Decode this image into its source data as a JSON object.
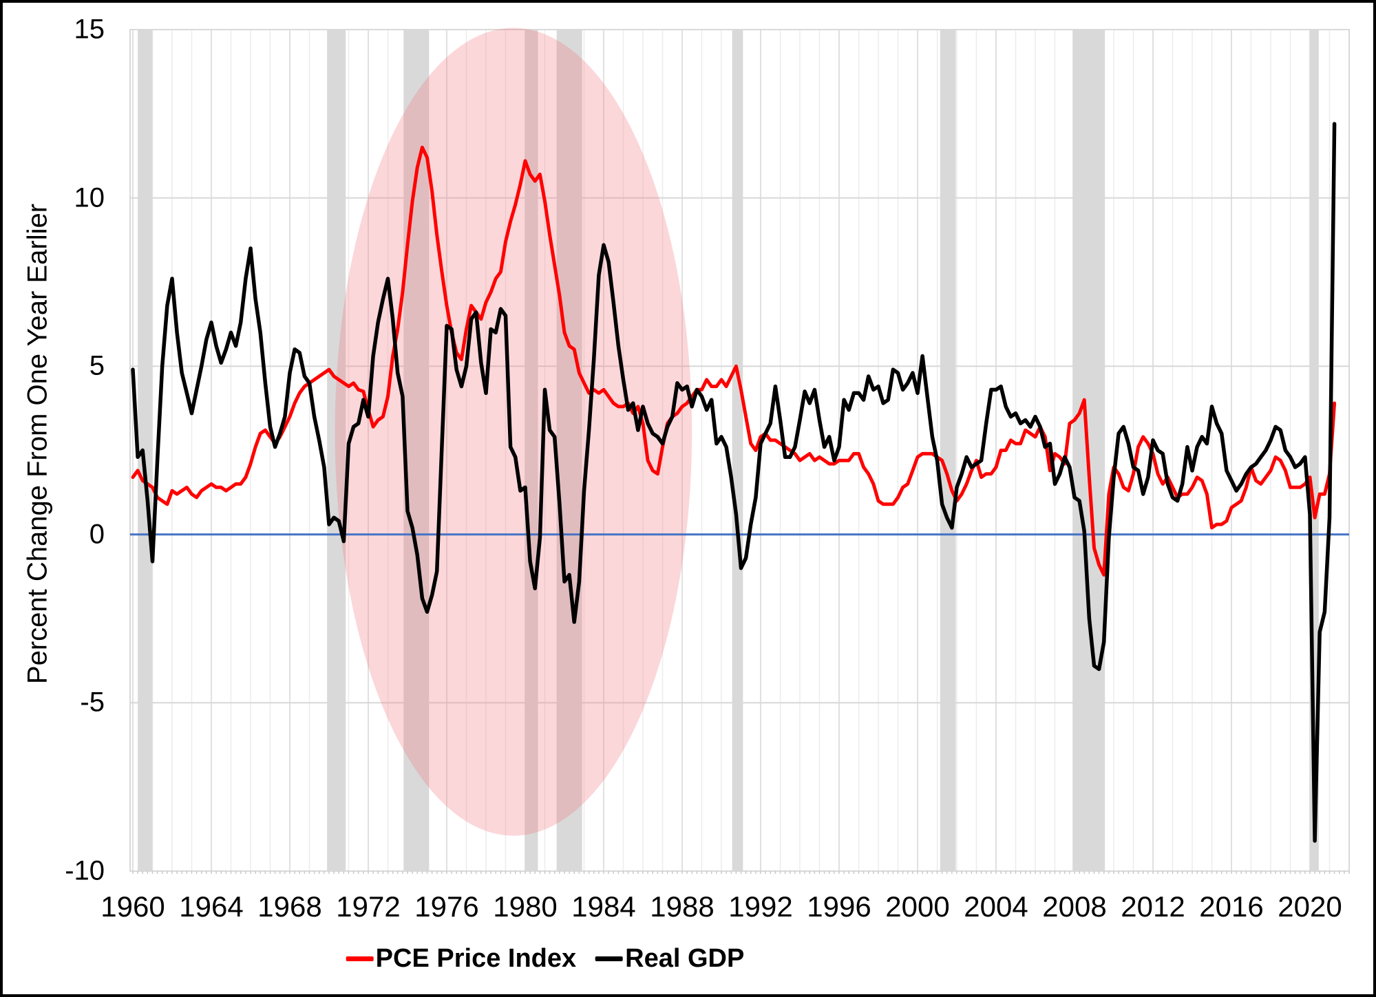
{
  "figure": {
    "y_axis_title": "Percent Change From One Year Earlier"
  },
  "chart_data": {
    "type": "line",
    "title": "",
    "xlabel": "",
    "ylabel": "Percent Change From One Year Earlier",
    "xlim": [
      1959.86,
      2022.0
    ],
    "ylim": [
      -10,
      15
    ],
    "x_ticks": [
      1960,
      1964,
      1968,
      1972,
      1976,
      1980,
      1984,
      1988,
      1992,
      1996,
      2000,
      2004,
      2008,
      2012,
      2016,
      2020
    ],
    "y_ticks": [
      15,
      10,
      5,
      0,
      -5,
      -10
    ],
    "grid": "on",
    "legend_position": "bottom-center",
    "x_start": 1960.0,
    "x_step": 0.25,
    "frequency": "quarterly",
    "series": [
      {
        "name": "PCE Price Index",
        "color": "#FF0000",
        "width": 5,
        "values": [
          1.7,
          1.9,
          1.6,
          1.5,
          1.4,
          1.1,
          1.0,
          0.9,
          1.3,
          1.2,
          1.3,
          1.4,
          1.2,
          1.1,
          1.3,
          1.4,
          1.5,
          1.4,
          1.4,
          1.3,
          1.4,
          1.5,
          1.5,
          1.7,
          2.1,
          2.6,
          3.0,
          3.1,
          2.9,
          2.7,
          2.9,
          3.2,
          3.5,
          3.9,
          4.2,
          4.4,
          4.5,
          4.6,
          4.7,
          4.8,
          4.9,
          4.7,
          4.6,
          4.5,
          4.4,
          4.5,
          4.3,
          4.25,
          3.7,
          3.2,
          3.4,
          3.5,
          4.1,
          5.3,
          6.1,
          7.2,
          8.6,
          9.9,
          10.9,
          11.5,
          11.2,
          10.2,
          8.9,
          7.8,
          6.8,
          6.0,
          5.4,
          5.2,
          6.1,
          6.8,
          6.6,
          6.4,
          6.9,
          7.2,
          7.6,
          7.8,
          8.7,
          9.3,
          9.8,
          10.4,
          11.1,
          10.7,
          10.5,
          10.7,
          9.9,
          8.9,
          8.0,
          7.1,
          6.0,
          5.6,
          5.5,
          4.8,
          4.5,
          4.2,
          4.3,
          4.2,
          4.3,
          4.1,
          3.9,
          3.8,
          3.8,
          3.9,
          3.6,
          3.8,
          3.3,
          2.2,
          1.9,
          1.8,
          2.6,
          3.3,
          3.5,
          3.6,
          3.8,
          3.9,
          4.1,
          4.3,
          4.3,
          4.6,
          4.4,
          4.4,
          4.6,
          4.4,
          4.7,
          5.0,
          4.3,
          3.5,
          2.7,
          2.5,
          2.9,
          3.0,
          2.8,
          2.8,
          2.7,
          2.6,
          2.5,
          2.4,
          2.2,
          2.3,
          2.4,
          2.2,
          2.3,
          2.2,
          2.1,
          2.1,
          2.2,
          2.2,
          2.2,
          2.4,
          2.4,
          2.0,
          1.8,
          1.5,
          1.0,
          0.9,
          0.9,
          0.9,
          1.1,
          1.4,
          1.5,
          1.9,
          2.3,
          2.4,
          2.4,
          2.4,
          2.3,
          2.2,
          1.8,
          1.3,
          1.0,
          1.2,
          1.5,
          1.9,
          2.2,
          1.7,
          1.8,
          1.8,
          2.0,
          2.5,
          2.5,
          2.8,
          2.7,
          2.7,
          3.1,
          3.0,
          2.9,
          3.2,
          2.9,
          1.9,
          2.4,
          2.3,
          2.1,
          3.3,
          3.4,
          3.6,
          4.0,
          1.7,
          -0.4,
          -0.9,
          -1.2,
          1.2,
          2.0,
          1.8,
          1.4,
          1.3,
          1.8,
          2.6,
          2.9,
          2.7,
          2.4,
          1.8,
          1.5,
          1.7,
          1.4,
          1.1,
          1.2,
          1.2,
          1.4,
          1.7,
          1.6,
          1.2,
          0.2,
          0.3,
          0.3,
          0.4,
          0.8,
          0.9,
          1.0,
          1.4,
          2.0,
          1.6,
          1.5,
          1.7,
          1.9,
          2.3,
          2.2,
          1.9,
          1.4,
          1.4,
          1.4,
          1.5,
          1.7,
          0.5,
          1.2,
          1.2,
          1.8,
          3.9
        ]
      },
      {
        "name": "Real GDP",
        "color": "#000000",
        "width": 5.5,
        "values": [
          4.9,
          2.3,
          2.5,
          1.0,
          -0.8,
          2.2,
          5.0,
          6.8,
          7.6,
          6.0,
          4.8,
          4.2,
          3.6,
          4.3,
          5.0,
          5.8,
          6.3,
          5.6,
          5.1,
          5.5,
          6.0,
          5.6,
          6.3,
          7.6,
          8.5,
          7.0,
          6.0,
          4.5,
          3.2,
          2.6,
          3.0,
          3.5,
          4.8,
          5.5,
          5.4,
          4.7,
          4.5,
          3.5,
          2.8,
          2.0,
          0.3,
          0.5,
          0.4,
          -0.2,
          2.7,
          3.2,
          3.3,
          4.0,
          3.5,
          5.3,
          6.3,
          7.0,
          7.6,
          6.4,
          4.8,
          4.1,
          0.7,
          0.2,
          -0.6,
          -1.9,
          -2.3,
          -1.8,
          -1.1,
          2.6,
          6.2,
          6.1,
          4.9,
          4.4,
          5.0,
          6.4,
          6.6,
          5.1,
          4.2,
          6.1,
          6.0,
          6.7,
          6.5,
          2.6,
          2.3,
          1.3,
          1.4,
          -0.8,
          -1.6,
          -0.1,
          4.3,
          3.1,
          2.9,
          0.9,
          -1.4,
          -1.2,
          -2.6,
          -1.4,
          1.3,
          3.1,
          5.2,
          7.7,
          8.6,
          8.1,
          6.9,
          5.6,
          4.6,
          3.7,
          3.9,
          3.1,
          3.8,
          3.3,
          3.0,
          2.9,
          2.7,
          3.2,
          3.5,
          4.5,
          4.3,
          4.4,
          3.8,
          4.3,
          4.1,
          3.7,
          4.0,
          2.7,
          2.9,
          2.6,
          1.7,
          0.6,
          -1.0,
          -0.7,
          0.3,
          1.1,
          2.7,
          3.0,
          3.3,
          4.4,
          3.4,
          2.3,
          2.3,
          2.6,
          3.4,
          4.25,
          3.9,
          4.3,
          3.4,
          2.6,
          2.9,
          2.2,
          2.6,
          4.0,
          3.7,
          4.2,
          4.2,
          4.0,
          4.7,
          4.3,
          4.4,
          3.9,
          4.0,
          4.9,
          4.8,
          4.3,
          4.5,
          4.8,
          4.2,
          5.3,
          4.1,
          2.9,
          2.2,
          0.9,
          0.5,
          0.2,
          1.4,
          1.8,
          2.3,
          2.0,
          2.1,
          2.2,
          3.3,
          4.3,
          4.3,
          4.4,
          3.8,
          3.5,
          3.6,
          3.3,
          3.4,
          3.2,
          3.5,
          3.2,
          2.6,
          2.7,
          1.5,
          1.8,
          2.3,
          2.0,
          1.1,
          1.0,
          0.1,
          -2.5,
          -3.9,
          -4.0,
          -3.2,
          -0.1,
          1.7,
          3.0,
          3.2,
          2.7,
          2.0,
          1.9,
          1.2,
          1.7,
          2.8,
          2.5,
          2.4,
          1.5,
          1.1,
          1.0,
          1.5,
          2.6,
          1.9,
          2.6,
          2.9,
          2.7,
          3.8,
          3.3,
          3.0,
          1.9,
          1.6,
          1.3,
          1.5,
          1.8,
          2.0,
          2.1,
          2.3,
          2.5,
          2.8,
          3.2,
          3.1,
          2.5,
          2.3,
          2.0,
          2.1,
          2.3,
          0.6,
          -9.1,
          -2.9,
          -2.3,
          0.5,
          12.2
        ]
      }
    ],
    "recession_bands": [
      [
        1960.25,
        1961.0
      ],
      [
        1969.9,
        1970.85
      ],
      [
        1973.8,
        1975.1
      ],
      [
        1980.0,
        1980.65
      ],
      [
        1981.6,
        1982.9
      ],
      [
        1990.55,
        1991.1
      ],
      [
        2001.15,
        2001.95
      ],
      [
        2007.9,
        2009.55
      ],
      [
        2020.0,
        2020.45
      ]
    ],
    "highlight_ellipse": {
      "x_center": 1979.4,
      "y_center": 3.05,
      "x_radius": 9.1,
      "y_radius": 12.0,
      "fill": "rgba(242,121,132,0.30)"
    },
    "colors": {
      "zero_line": "#4472C4",
      "recession_band": "#D9D9D9",
      "grid_minor": "#ECECEC",
      "grid_major": "#E0E0E0",
      "grid_horizontal": "#D8D8D8",
      "plot_border": "#D9D9D9",
      "tick": "#C9C9C9",
      "background": "#FFFFFF"
    }
  }
}
